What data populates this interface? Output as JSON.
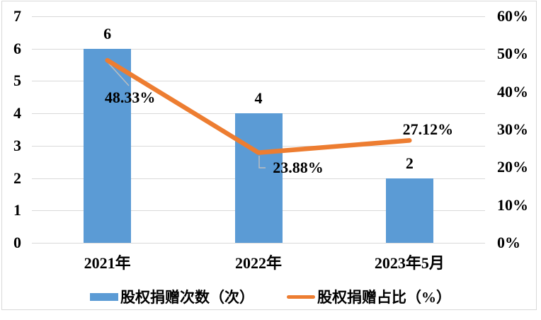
{
  "chart_data": {
    "type": "bar",
    "combo": "bar-and-line, dual axis",
    "categories": [
      "2021年",
      "2022年",
      "2023年5月"
    ],
    "series": [
      {
        "name": "股权捐赠次数（次）",
        "chart_type": "bar",
        "axis": "left",
        "values": [
          6,
          4,
          2
        ],
        "data_labels": [
          "6",
          "4",
          "2"
        ],
        "color": "#5b9bd5"
      },
      {
        "name": "股权捐赠占比（%）",
        "chart_type": "line",
        "axis": "right",
        "values": [
          48.33,
          23.88,
          27.12
        ],
        "data_labels": [
          "48.33%",
          "23.88%",
          "27.12%"
        ],
        "color": "#ed7d31"
      }
    ],
    "left_axis": {
      "min": 0,
      "max": 7,
      "tick_step": 1,
      "ticks": [
        "0",
        "1",
        "2",
        "3",
        "4",
        "5",
        "6",
        "7"
      ]
    },
    "right_axis": {
      "min": 0,
      "max": 60,
      "tick_step": 10,
      "ticks": [
        "0%",
        "10%",
        "20%",
        "30%",
        "40%",
        "50%",
        "60%"
      ]
    },
    "grid": "horizontal gridlines on, aligned to left axis units",
    "legend_position": "bottom",
    "title": "",
    "xlabel": "",
    "ylabel": ""
  },
  "colors": {
    "bar": "#5b9bd5",
    "line": "#ed7d31",
    "gridline": "#d9d9d9",
    "frame_border": "#d9d9d9",
    "leader_line": "#bfbfbf",
    "text": "#000000",
    "background": "#ffffff"
  },
  "legend": {
    "bar_label": "股权捐赠次数（次）",
    "line_label": "股权捐赠占比（%）"
  }
}
